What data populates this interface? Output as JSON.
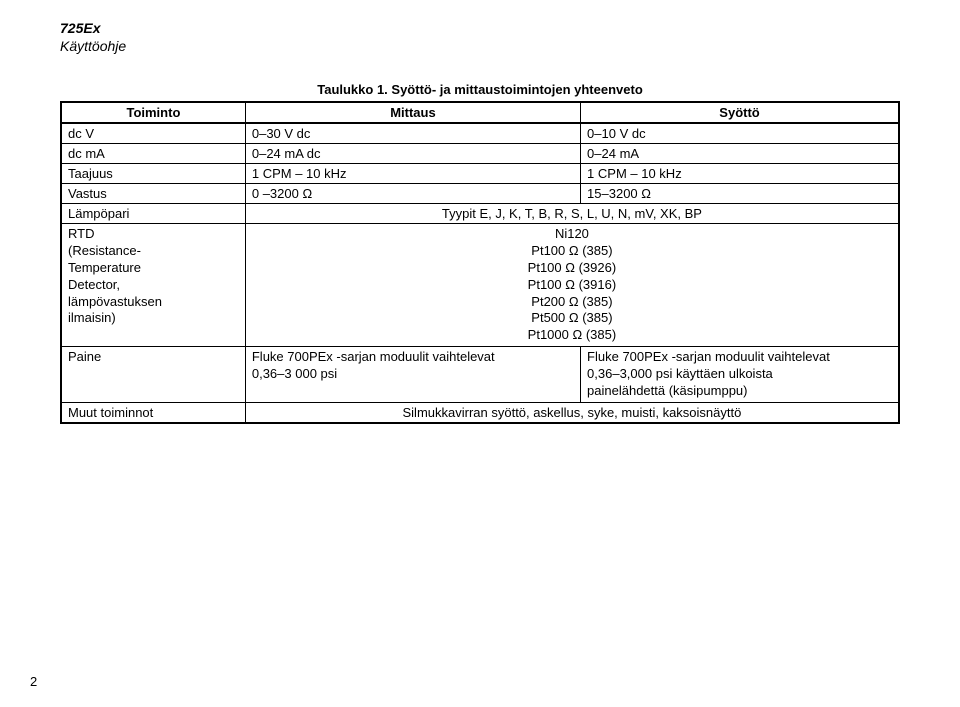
{
  "header": {
    "line1": "725Ex",
    "line2": "Käyttöohje"
  },
  "table_title": "Taulukko 1. Syöttö- ja mittaustoimintojen yhteenveto",
  "columns": [
    "Toiminto",
    "Mittaus",
    "Syöttö"
  ],
  "rows": {
    "dcv": {
      "toiminto": "dc V",
      "mittaus": "0–30 V dc",
      "syotto": "0–10 V dc"
    },
    "dcma": {
      "toiminto": "dc mA",
      "mittaus": "0–24 mA dc",
      "syotto": "0–24 mA"
    },
    "taajuus": {
      "toiminto": "Taajuus",
      "mittaus": "1 CPM – 10 kHz",
      "syotto": "1 CPM – 10 kHz"
    },
    "vastus": {
      "toiminto": "Vastus",
      "mittaus": "0 –3200 Ω",
      "syotto": "15–3200 Ω"
    },
    "lampopari": {
      "toiminto": "Lämpöpari",
      "spanning": "Tyypit E, J, K, T, B, R, S, L, U, N, mV, XK, BP"
    },
    "rtd": {
      "toiminto": "RTD\n(Resistance-\nTemperature\nDetector,\nlämpövastuksen\nilmaisin)",
      "spanning": "Ni120\nPt100 Ω (385)\nPt100 Ω (3926)\nPt100 Ω (3916)\nPt200 Ω (385)\nPt500 Ω (385)\nPt1000 Ω (385)"
    },
    "paine": {
      "toiminto": "Paine",
      "mittaus": "Fluke 700PEx -sarjan moduulit vaihtelevat\n0,36–3 000 psi",
      "syotto": "Fluke 700PEx -sarjan moduulit vaihtelevat\n0,36–3,000 psi käyttäen ulkoista\npainelähdettä (käsipumppu)"
    },
    "muut": {
      "toiminto": "Muut toiminnot",
      "spanning": "Silmukkavirran syöttö, askellus, syke, muisti, kaksoisnäyttö"
    }
  },
  "page_number": "2",
  "colors": {
    "background": "#ffffff",
    "text": "#000000",
    "border": "#000000"
  }
}
